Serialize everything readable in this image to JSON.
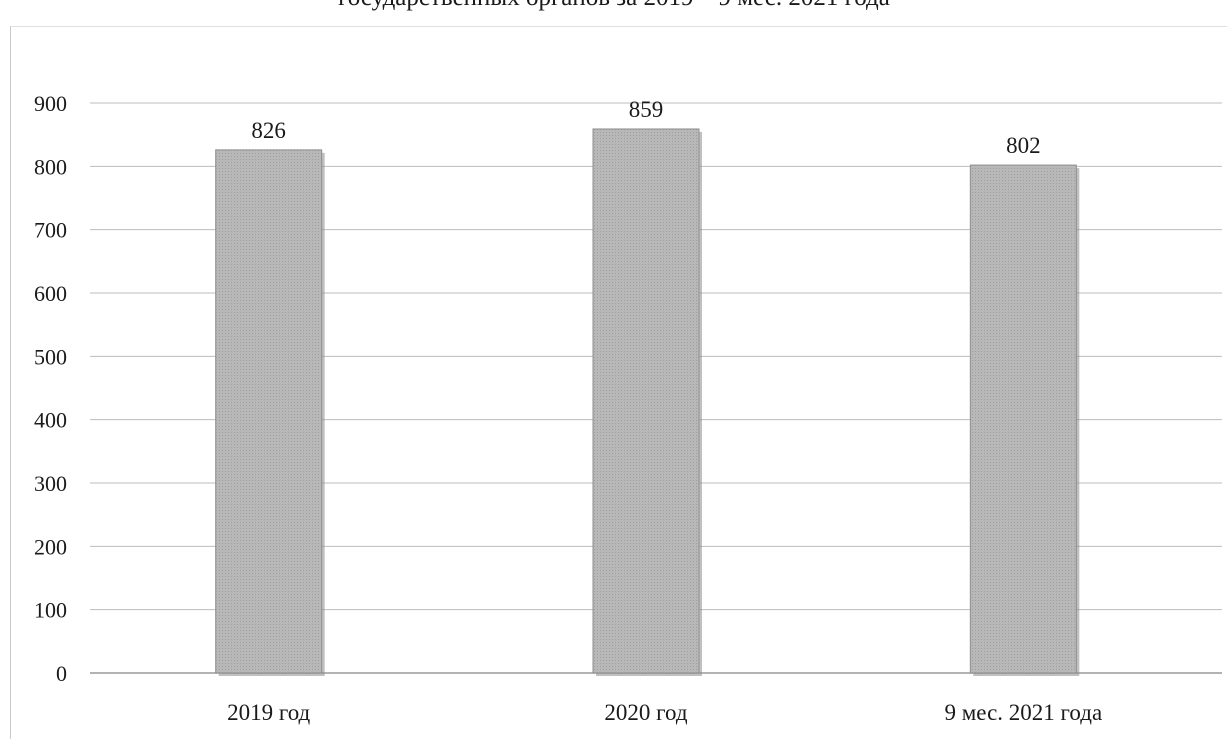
{
  "chart_data": {
    "type": "bar",
    "title": "государственных органов за 2019 – 9 мес. 2021 года",
    "categories": [
      "2019 год",
      "2020 год",
      "9 мес. 2021 года"
    ],
    "values": [
      826,
      859,
      802
    ],
    "data_labels": [
      "826",
      "859",
      "802"
    ],
    "ylim": [
      0,
      900
    ],
    "yticks": [
      0,
      100,
      200,
      300,
      400,
      500,
      600,
      700,
      800,
      900
    ],
    "xlabel": "",
    "ylabel": "",
    "grid": true,
    "legend": "none",
    "bar_color": "#b3b3b3"
  }
}
